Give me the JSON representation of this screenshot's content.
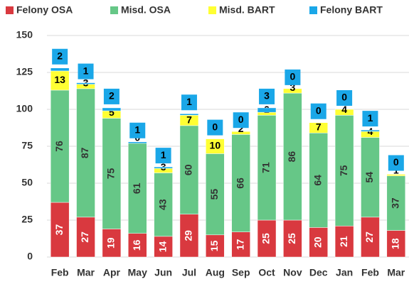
{
  "chart_data": {
    "type": "stacked_bar",
    "categories": [
      "Feb",
      "Mar",
      "Apr",
      "May",
      "Jun",
      "Jul",
      "Aug",
      "Sep",
      "Oct",
      "Nov",
      "Dec",
      "Jan",
      "Feb",
      "Mar"
    ],
    "series": [
      {
        "name": "Felony OSA",
        "color": "#d9393f",
        "values": [
          37,
          27,
          19,
          16,
          14,
          29,
          15,
          17,
          25,
          25,
          20,
          21,
          27,
          18
        ]
      },
      {
        "name": "Misd. OSA",
        "color": "#66c787",
        "values": [
          76,
          87,
          75,
          61,
          43,
          60,
          55,
          66,
          71,
          86,
          64,
          75,
          54,
          37
        ]
      },
      {
        "name": "Misd. BART",
        "color": "#ffff33",
        "values": [
          13,
          3,
          5,
          0,
          3,
          7,
          10,
          2,
          2,
          3,
          7,
          4,
          4,
          1
        ]
      },
      {
        "name": "Felony BART",
        "color": "#1aa7e8",
        "values": [
          2,
          1,
          2,
          1,
          1,
          1,
          0,
          0,
          3,
          0,
          0,
          0,
          1,
          0
        ]
      }
    ],
    "ylim": [
      0,
      150
    ],
    "yticks": [
      0,
      25,
      50,
      75,
      100,
      125,
      150
    ],
    "grid": true,
    "legend": "top"
  }
}
